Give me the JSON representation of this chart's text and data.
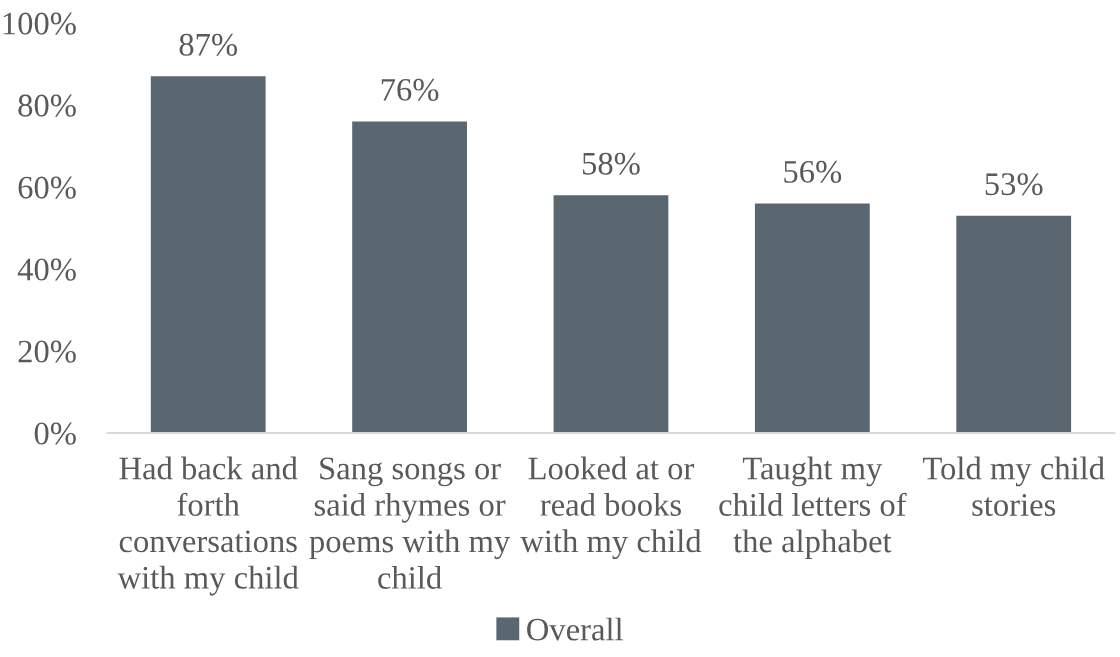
{
  "chart_data": {
    "type": "bar",
    "categories": [
      "Had back and forth conversations with my child",
      "Sang songs or said rhymes or poems with my child",
      "Looked at or read books with my child",
      "Taught my child letters of the alphabet",
      "Told my child stories"
    ],
    "series": [
      {
        "name": "Overall",
        "color": "#5b6770",
        "values": [
          87,
          76,
          58,
          56,
          53
        ],
        "value_labels": [
          "87%",
          "76%",
          "58%",
          "56%",
          "53%"
        ]
      }
    ],
    "ylim": [
      0,
      100
    ],
    "yticks": [
      {
        "value": 0,
        "label": "0%"
      },
      {
        "value": 20,
        "label": "20%"
      },
      {
        "value": 40,
        "label": "40%"
      },
      {
        "value": 60,
        "label": "60%"
      },
      {
        "value": 80,
        "label": "80%"
      },
      {
        "value": 100,
        "label": "100%"
      }
    ],
    "grid": false,
    "legend": "bottom"
  }
}
